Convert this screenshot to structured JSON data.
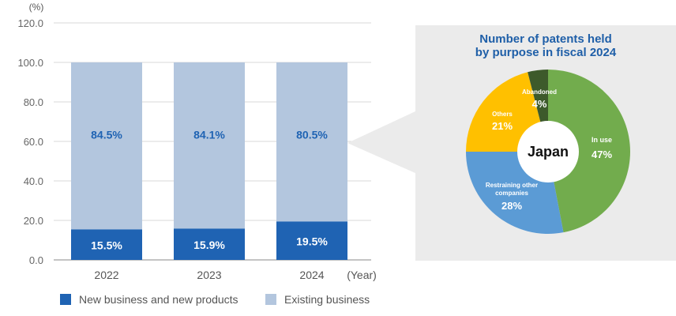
{
  "chart_data": [
    {
      "type": "bar",
      "stacked": true,
      "ylabel": "(%)",
      "xlabel": "(Year)",
      "ylim": [
        0,
        120
      ],
      "yticks": [
        "0.0",
        "20.0",
        "40.0",
        "60.0",
        "80.0",
        "100.0",
        "120.0"
      ],
      "categories": [
        "2022",
        "2023",
        "2024"
      ],
      "grid": true,
      "legend_position": "bottom",
      "series": [
        {
          "name": "New business and new products",
          "values": [
            15.5,
            15.9,
            19.5
          ],
          "labels": [
            "15.5%",
            "15.9%",
            "19.5%"
          ],
          "color": "#1f63b3"
        },
        {
          "name": "Existing business",
          "values": [
            84.5,
            84.1,
            80.5
          ],
          "labels": [
            "84.5%",
            "84.1%",
            "80.5%"
          ],
          "color": "#b3c6de"
        }
      ]
    },
    {
      "type": "pie",
      "title": [
        "Number of patents held",
        "by purpose in fiscal 2024"
      ],
      "center_label": "Japan",
      "slices": [
        {
          "name": "In use",
          "value": 47,
          "label": "47%",
          "color": "#72ac4d"
        },
        {
          "name": "Restraining other companies",
          "value": 28,
          "label": "28%",
          "color": "#5b9bd5"
        },
        {
          "name": "Others",
          "value": 21,
          "label": "21%",
          "color": "#ffc000"
        },
        {
          "name": "Abandoned",
          "value": 4,
          "label": "4%",
          "color": "#3d5a2b"
        }
      ]
    }
  ],
  "colors": {
    "label_blue": "#1f63b3",
    "axis_gray": "#666666",
    "title_blue": "#1f5fa8",
    "panel": "#ebebeb"
  }
}
